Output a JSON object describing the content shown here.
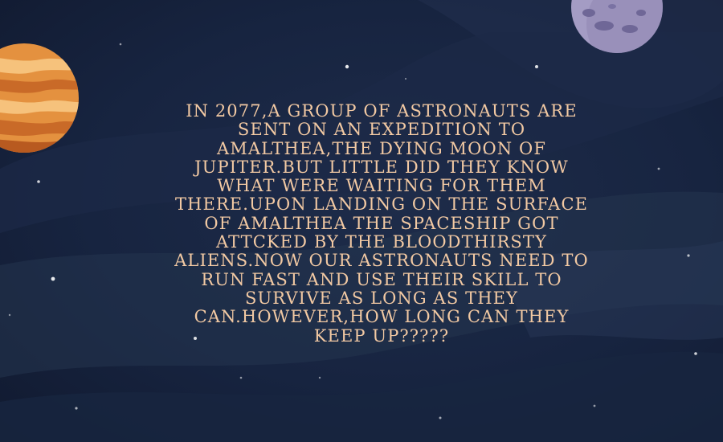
{
  "story": {
    "lines": [
      "IN 2077,A GROUP OF ASTRONAUTS ARE",
      "SENT ON AN EXPEDITION TO",
      "AMALTHEA,THE DYING MOON OF",
      "JUPITER.BUT LITTLE DID THEY KNOW",
      "WHAT WERE WAITING FOR THEM",
      "THERE.UPON LANDING ON THE SURFACE",
      "OF AMALTHEA THE SPACESHIP GOT",
      "ATTCKED BY THE BLOODTHIRSTY",
      "ALIENS.NOW OUR ASTRONAUTS NEED TO",
      "RUN FAST AND USE THEIR SKILL TO",
      "SURVIVE AS LONG AS THEY",
      "CAN.HOWEVER,HOW LONG CAN THEY",
      "KEEP UP?????"
    ]
  },
  "colors": {
    "text": "#f2c9a3",
    "space": "#152038",
    "jupiter": "#e08a3a",
    "moon": "#a49cc4"
  },
  "icons": {
    "planet": "jupiter-planet-icon",
    "moon": "grey-moon-icon"
  }
}
